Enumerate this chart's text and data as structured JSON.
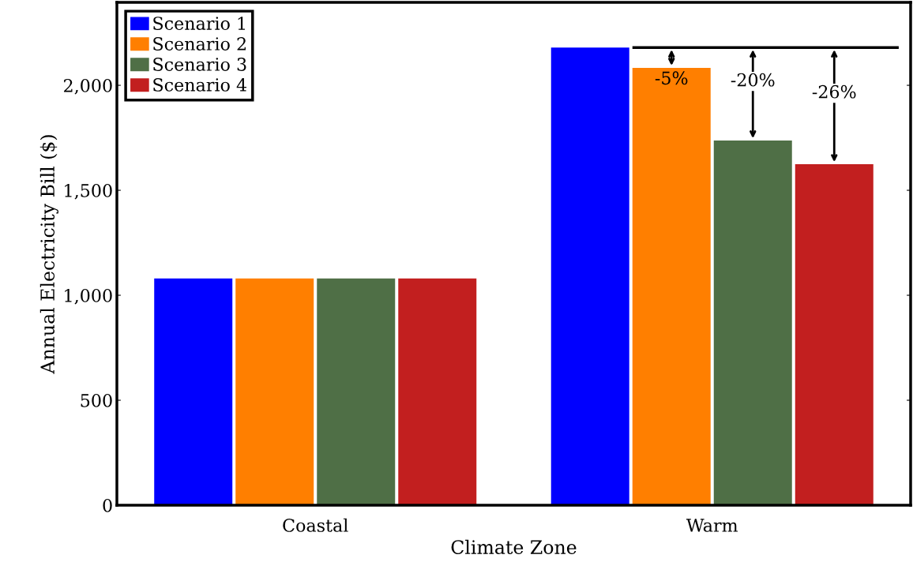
{
  "chart_data": {
    "type": "bar",
    "xlabel": "Climate Zone",
    "ylabel": "Annual Electricity Bill ($)",
    "categories": [
      "Coastal",
      "Warm"
    ],
    "series": [
      {
        "name": "Scenario 1",
        "color": "#0000ff",
        "values": [
          1080,
          2180
        ]
      },
      {
        "name": "Scenario 2",
        "color": "#ff7f00",
        "values": [
          1080,
          2083
        ]
      },
      {
        "name": "Scenario 3",
        "color": "#4f6f46",
        "values": [
          1080,
          1737
        ]
      },
      {
        "name": "Scenario 4",
        "color": "#c21f1f",
        "values": [
          1080,
          1624
        ]
      }
    ],
    "ylim": [
      0,
      2395
    ],
    "yticks": [
      0,
      500,
      {
        "value": 1000,
        "label": "1,000"
      },
      {
        "value": 1500,
        "label": "1,500"
      },
      {
        "value": 2000,
        "label": "2,000"
      }
    ],
    "ref_lines": [
      {
        "axis": "y",
        "value": 2180,
        "color": "#000000"
      }
    ],
    "annotations": [
      "-5%",
      "-20%",
      "-26%"
    ],
    "legend": "top left",
    "grid": false
  }
}
